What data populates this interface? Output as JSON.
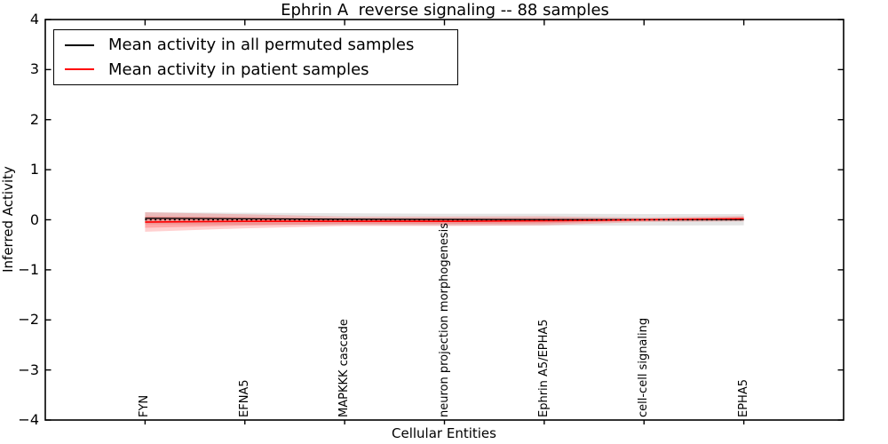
{
  "figure": {
    "title": "Ephrin A  reverse signaling -- 88 samples"
  },
  "chart_data": {
    "type": "line",
    "title": "Ephrin A  reverse signaling -- 88 samples",
    "xlabel": "Cellular Entities",
    "ylabel": "Inferred Activity",
    "xlim": [
      -1,
      7
    ],
    "ylim": [
      -4,
      4
    ],
    "grid": false,
    "legend_position": "upper left",
    "categories": [
      "FYN",
      "EFNA5",
      "MAPKKK cascade",
      "neuron projection morphogenesis",
      "Ephrin A5/EPHA5",
      "cell-cell signaling",
      "EPHA5"
    ],
    "ytick_values": [
      4,
      3,
      2,
      1,
      0,
      -1,
      -2,
      -3,
      -4
    ],
    "ytick_labels": [
      "4",
      "3",
      "2",
      "1",
      "0",
      "−1",
      "−2",
      "−3",
      "−4"
    ],
    "series": [
      {
        "name": "permuted-mean",
        "label": "Mean activity in all permuted samples",
        "color": "#000000",
        "values": [
          0.03,
          0.02,
          0.012,
          0.008,
          0.005,
          0.002,
          0.0
        ]
      },
      {
        "name": "patient-mean",
        "label": "Mean activity in patient samples",
        "color": "#ff0000",
        "values": [
          -0.045,
          -0.03,
          -0.03,
          -0.03,
          -0.02,
          0.0,
          0.02
        ]
      }
    ],
    "bands": [
      {
        "name": "permuted-std",
        "color": "rgba(110,110,110,0.18)",
        "upper": [
          0.15,
          0.14,
          0.13,
          0.12,
          0.12,
          0.115,
          0.115
        ],
        "lower": [
          -0.09,
          -0.1,
          -0.105,
          -0.11,
          -0.115,
          -0.115,
          -0.11
        ]
      },
      {
        "name": "patient-std-outer",
        "color": "rgba(255,40,40,0.22)",
        "upper": [
          0.15,
          0.11,
          0.065,
          0.065,
          0.07,
          0.045,
          0.075
        ],
        "lower": [
          -0.24,
          -0.17,
          -0.125,
          -0.125,
          -0.11,
          -0.045,
          -0.03
        ]
      },
      {
        "name": "patient-std-inner",
        "color": "rgba(255,40,40,0.25)",
        "upper": [
          0.07,
          0.055,
          0.025,
          0.025,
          0.03,
          0.02,
          0.05
        ],
        "lower": [
          -0.16,
          -0.115,
          -0.085,
          -0.085,
          -0.07,
          -0.02,
          -0.005
        ]
      }
    ],
    "zero_line": {
      "value": 0,
      "style": "dotted",
      "color": "#000000"
    },
    "legend": [
      {
        "label": "Mean activity in all permuted samples",
        "color": "#000000"
      },
      {
        "label": "Mean activity in patient samples",
        "color": "#ff0000"
      }
    ]
  }
}
